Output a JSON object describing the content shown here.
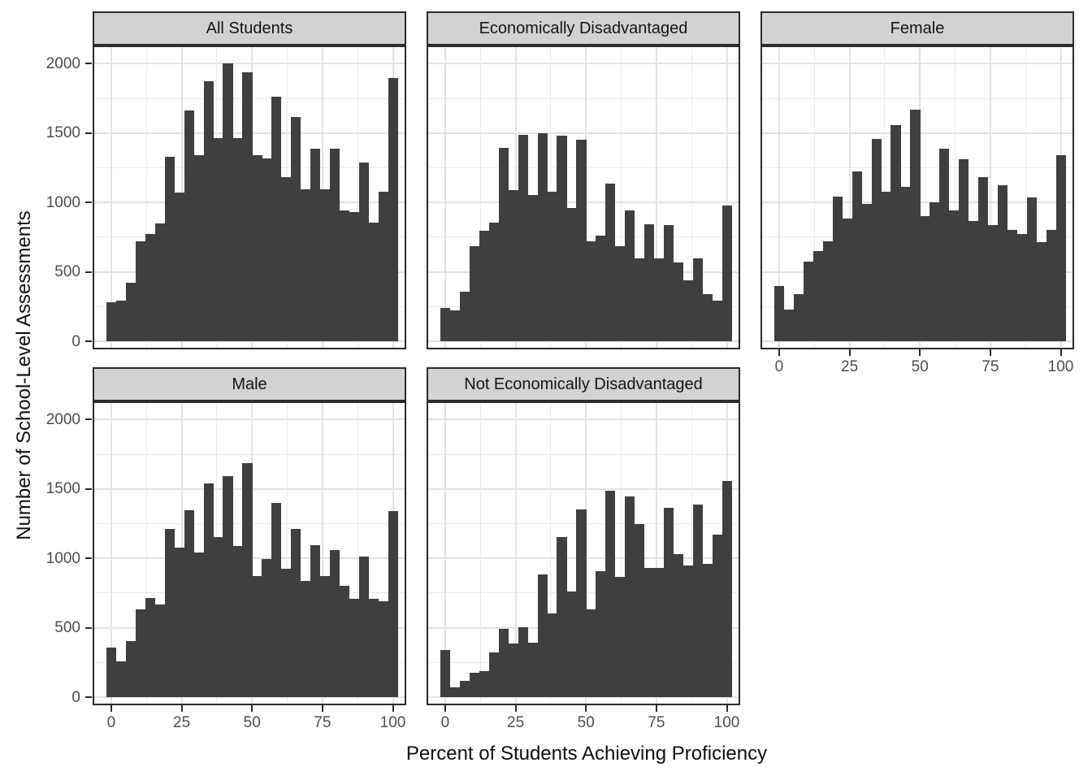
{
  "figure": {
    "x_axis_title": "Percent of Students Achieving Proficiency",
    "y_axis_title": "Number of School-Level Assessments",
    "colors": {
      "bar_fill": "#3F3F3F",
      "strip_background": "#D2D2D2",
      "panel_border": "#2B2B2B",
      "grid_major": "#E3E3E3",
      "grid_minor": "#EBEBEB",
      "tick_label": "#4D4D4D",
      "axis_title": "#0F0F0F",
      "panel_background": "#FFFFFF"
    }
  },
  "chart_data": {
    "type": "bar",
    "subtype": "faceted-histogram",
    "title": "",
    "xlabel": "Percent of Students Achieving Proficiency",
    "ylabel": "Number of School-Level Assessments",
    "x_ticks": [
      0,
      25,
      50,
      75,
      100
    ],
    "y_ticks": [
      0,
      500,
      1000,
      1500,
      2000
    ],
    "x_minor_ticks": [
      12.5,
      37.5,
      62.5,
      87.5
    ],
    "y_minor_ticks": [
      250,
      750,
      1250,
      1750
    ],
    "xlim": [
      -6,
      107
    ],
    "ylim": [
      0,
      2136
    ],
    "grid": "on",
    "binwidth": 3.45,
    "bin_centers": [
      0,
      3.4,
      6.9,
      10.3,
      13.8,
      17.2,
      20.7,
      24.1,
      27.6,
      31,
      34.5,
      37.9,
      41.4,
      44.8,
      48.3,
      51.7,
      55.2,
      58.6,
      62.1,
      65.5,
      69,
      72.4,
      75.9,
      79.3,
      82.8,
      86.2,
      89.7,
      93.1,
      96.6,
      100
    ],
    "series": [
      {
        "name": "All Students",
        "values": [
          280,
          290,
          420,
          720,
          770,
          850,
          1330,
          1070,
          1665,
          1340,
          1875,
          1465,
          2005,
          1465,
          1940,
          1340,
          1320,
          1765,
          1180,
          1615,
          1095,
          1390,
          1095,
          1390,
          945,
          930,
          1290,
          855,
          1075,
          1895
        ]
      },
      {
        "name": "Economically Disadvantaged",
        "values": [
          240,
          220,
          355,
          685,
          795,
          855,
          1395,
          1090,
          1485,
          1055,
          1500,
          1075,
          1480,
          960,
          1450,
          720,
          760,
          1135,
          685,
          945,
          600,
          845,
          595,
          835,
          565,
          440,
          600,
          340,
          290,
          980
        ]
      },
      {
        "name": "Female",
        "values": [
          400,
          230,
          340,
          575,
          650,
          720,
          1045,
          885,
          1225,
          990,
          1455,
          1080,
          1560,
          1110,
          1670,
          900,
          1000,
          1385,
          945,
          1310,
          865,
          1185,
          835,
          1125,
          805,
          770,
          1035,
          715,
          805,
          1340
        ]
      },
      {
        "name": "Male",
        "values": [
          355,
          260,
          405,
          635,
          715,
          670,
          1210,
          1080,
          1345,
          1040,
          1540,
          1155,
          1590,
          1090,
          1685,
          875,
          995,
          1400,
          925,
          1210,
          835,
          1095,
          875,
          1060,
          800,
          710,
          1010,
          710,
          690,
          1340
        ]
      },
      {
        "name": "Not Economically Disadvantaged",
        "values": [
          340,
          70,
          115,
          175,
          185,
          320,
          490,
          385,
          505,
          390,
          885,
          605,
          1155,
          760,
          1355,
          635,
          910,
          1485,
          865,
          1445,
          1245,
          930,
          930,
          1365,
          1030,
          950,
          1390,
          960,
          1170,
          1560
        ]
      }
    ],
    "legend": "none"
  }
}
